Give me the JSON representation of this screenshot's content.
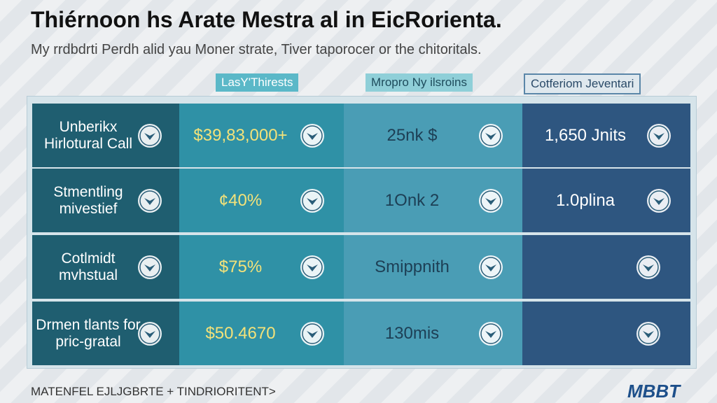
{
  "header": {
    "title": "Thiérnoon hs Arate Mestra al in EicRorienta.",
    "subtitle": "My rrdbdrti Perdh alid yau Moner strate, Tiver taporocer or the chitoritals."
  },
  "table": {
    "columns": [
      "LasY'Thirests",
      "Mropro Ny ilsroins",
      "Cotferiom Jeventari"
    ],
    "rows": [
      {
        "label": "Unberikx Hirlotural Call",
        "cells": [
          "$39,83,000+",
          "25nk $",
          "1,650 Jnits"
        ]
      },
      {
        "label": "Stmentling mivestief",
        "cells": [
          "¢40%",
          "1Onk 2",
          "1.0plina"
        ]
      },
      {
        "label": "Cotlmidt mvhstual",
        "cells": [
          "$75%",
          "Smippnith",
          null
        ]
      },
      {
        "label": "Drmen tlants for pric-gratal",
        "cells": [
          "$50.4670",
          "130mis",
          null
        ]
      }
    ]
  },
  "footer": {
    "text": "MATENFEL EJLJGBRTE + TINDRIORITENT>",
    "logo": "MBBT"
  }
}
